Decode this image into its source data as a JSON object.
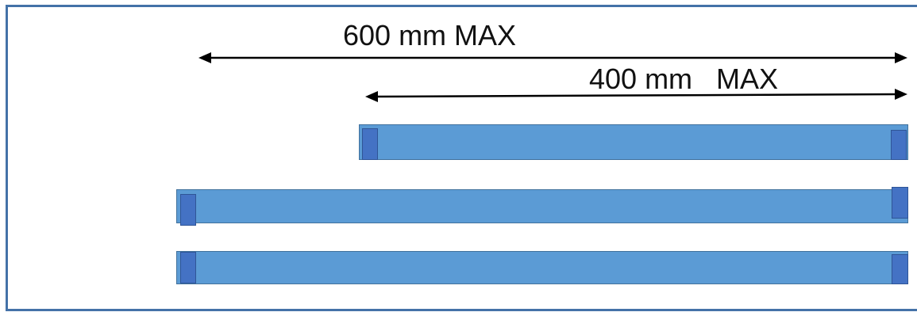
{
  "dimensions": {
    "long": {
      "label": "600 mm MAX",
      "value_mm": 600
    },
    "short": {
      "label": "400 mm   MAX",
      "value_mm": 400
    }
  },
  "colors": {
    "frame": "#4472a8",
    "bar_fill": "#5b9bd5",
    "bar_border": "#41719c",
    "end_tab": "#4472c4",
    "arrow": "#000000"
  },
  "bars": [
    {
      "name": "short-bar",
      "length_mm": 400
    },
    {
      "name": "long-bar-1",
      "length_mm": 600
    },
    {
      "name": "long-bar-2",
      "length_mm": 600
    }
  ]
}
